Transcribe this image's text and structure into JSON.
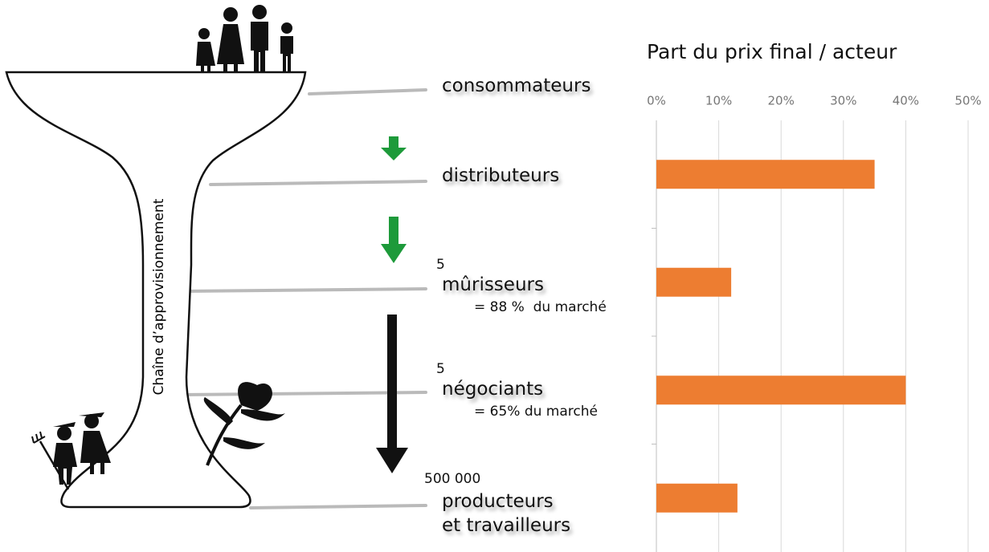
{
  "diagram": {
    "side_label": "Chaîne d’approvisionnement",
    "levels": [
      {
        "label": "consommateurs"
      },
      {
        "label": "distributeurs"
      },
      {
        "count": "5",
        "label": "mûrisseurs",
        "note": "= 88 %  du marché"
      },
      {
        "count": "5",
        "label": "négociants",
        "note": "= 65% du marché"
      },
      {
        "count": "500 000",
        "label": "producteurs\net travailleurs"
      }
    ]
  },
  "chart_data": {
    "type": "bar",
    "orientation": "horizontal",
    "title": "Part du prix final / acteur",
    "categories": [
      null,
      null,
      null,
      null
    ],
    "values": [
      35,
      12,
      40,
      13
    ],
    "color": "#ed7d31",
    "xlim": [
      0,
      50
    ],
    "xticks": [
      {
        "value": 0,
        "label": "0%"
      },
      {
        "value": 10,
        "label": "10%"
      },
      {
        "value": 20,
        "label": "20%"
      },
      {
        "value": 30,
        "label": "30%"
      },
      {
        "value": 40,
        "label": "40%"
      },
      {
        "value": 50,
        "label": "50%"
      }
    ],
    "grid": true
  }
}
